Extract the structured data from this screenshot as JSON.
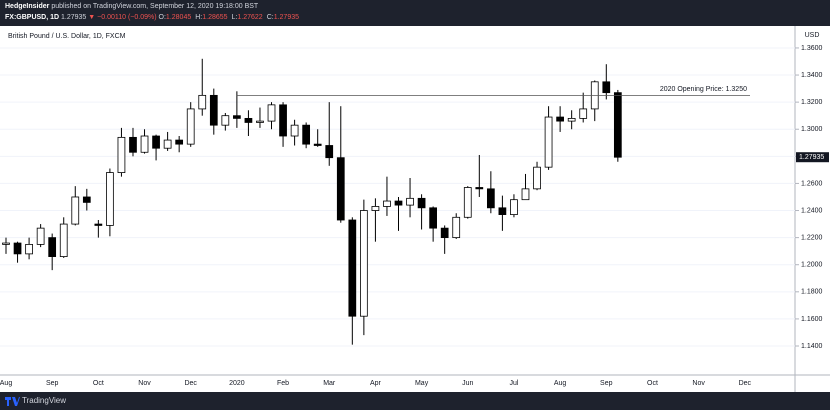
{
  "header": {
    "publisher": "HedgeInsider",
    "published": "published on TradingView.com, September 12, 2020 19:18:00 BST",
    "symbol": "FX:GBPUSD, 1D",
    "price": "1.27935",
    "change": "▼ −0.00110 (−0.09%)",
    "ohlc": [
      {
        "label": "O:",
        "value": "1.28045"
      },
      {
        "label": "H:",
        "value": "1.28655"
      },
      {
        "label": "L:",
        "value": "1.27622"
      },
      {
        "label": "C:",
        "value": "1.27935"
      }
    ]
  },
  "footer": {
    "brand": "TradingView"
  },
  "chart_data": {
    "type": "candlestick",
    "title": "British Pound / U.S. Dollar, 1D, FXCM",
    "currency": "USD",
    "up_color": "#ffffff",
    "down_color": "#000000",
    "outline_color": "#000000",
    "grid": true,
    "categories": [
      "Aug",
      null,
      null,
      null,
      "Sep",
      null,
      null,
      null,
      "Oct",
      null,
      null,
      null,
      "Nov",
      null,
      null,
      null,
      "Dec",
      null,
      null,
      null,
      "2020",
      null,
      null,
      null,
      "Feb",
      null,
      null,
      null,
      "Mar",
      null,
      null,
      null,
      "Apr",
      null,
      null,
      null,
      "May",
      null,
      null,
      null,
      "Jun",
      null,
      null,
      null,
      "Jul",
      null,
      null,
      null,
      "Aug",
      null,
      null,
      null,
      "Sep",
      null,
      null,
      null,
      "Oct",
      null,
      null,
      null,
      "Nov",
      null,
      null,
      null,
      "Dec",
      null,
      null,
      null
    ],
    "open": [
      1.215,
      1.216,
      1.208,
      1.215,
      1.22,
      1.206,
      1.23,
      1.25,
      1.23,
      1.229,
      1.268,
      1.294,
      1.283,
      1.295,
      1.286,
      1.292,
      1.289,
      1.315,
      1.325,
      1.303,
      1.31,
      1.308,
      1.305,
      1.306,
      1.318,
      1.295,
      1.303,
      1.289,
      1.288,
      1.279,
      1.233,
      1.162,
      1.24,
      1.243,
      1.247,
      1.244,
      1.249,
      1.242,
      1.227,
      1.22,
      1.235,
      1.257,
      1.256,
      1.242,
      1.237,
      1.248,
      1.256,
      1.272,
      1.309,
      1.306,
      1.308,
      1.315,
      1.335,
      1.327,
      null,
      null,
      null,
      null,
      null,
      null,
      null,
      null,
      null,
      null,
      null,
      null,
      null,
      null
    ],
    "high": [
      1.22,
      1.217,
      1.22,
      1.23,
      1.223,
      1.235,
      1.258,
      1.256,
      1.233,
      1.271,
      1.301,
      1.301,
      1.3,
      1.296,
      1.298,
      1.295,
      1.32,
      1.352,
      1.33,
      1.312,
      1.328,
      1.314,
      1.316,
      1.32,
      1.32,
      1.307,
      1.305,
      1.3,
      1.32,
      1.317,
      1.235,
      1.248,
      1.249,
      1.265,
      1.25,
      1.264,
      1.252,
      1.243,
      1.229,
      1.238,
      1.258,
      1.281,
      1.269,
      1.251,
      1.252,
      1.267,
      1.276,
      1.317,
      1.317,
      1.314,
      1.327,
      1.336,
      1.348,
      1.329,
      null,
      null,
      null,
      null,
      null,
      null,
      null,
      null,
      null,
      null,
      null,
      null,
      null,
      null
    ],
    "low": [
      1.208,
      1.2015,
      1.204,
      1.213,
      1.196,
      1.205,
      1.229,
      1.24,
      1.22,
      1.221,
      1.265,
      1.28,
      1.282,
      1.277,
      1.284,
      1.283,
      1.287,
      1.31,
      1.296,
      1.299,
      1.301,
      1.295,
      1.301,
      1.3,
      1.287,
      1.288,
      1.286,
      1.287,
      1.273,
      1.231,
      1.141,
      1.148,
      1.217,
      1.236,
      1.225,
      1.235,
      1.226,
      1.217,
      1.208,
      1.219,
      1.234,
      1.25,
      1.238,
      1.225,
      1.235,
      1.248,
      1.255,
      1.27,
      1.298,
      1.3,
      1.305,
      1.306,
      1.322,
      1.276,
      null,
      null,
      null,
      null,
      null,
      null,
      null,
      null,
      null,
      null,
      null,
      null,
      null,
      null
    ],
    "close": [
      1.216,
      1.208,
      1.215,
      1.227,
      1.206,
      1.23,
      1.25,
      1.246,
      1.229,
      1.268,
      1.294,
      1.283,
      1.295,
      1.286,
      1.292,
      1.289,
      1.315,
      1.325,
      1.303,
      1.31,
      1.308,
      1.305,
      1.306,
      1.318,
      1.295,
      1.303,
      1.289,
      1.288,
      1.279,
      1.233,
      1.162,
      1.24,
      1.243,
      1.247,
      1.244,
      1.249,
      1.242,
      1.227,
      1.22,
      1.235,
      1.257,
      1.256,
      1.242,
      1.237,
      1.248,
      1.256,
      1.272,
      1.309,
      1.306,
      1.308,
      1.315,
      1.335,
      1.327,
      1.27935,
      null,
      null,
      null,
      null,
      null,
      null,
      null,
      null,
      null,
      null,
      null,
      null,
      null,
      null
    ],
    "ylim": [
      1.1186,
      1.3762
    ],
    "yticks": [
      {
        "value": 1.14,
        "label": "1.1400"
      },
      {
        "value": 1.16,
        "label": "1.1600"
      },
      {
        "value": 1.18,
        "label": "1.1800"
      },
      {
        "value": 1.2,
        "label": "1.2000"
      },
      {
        "value": 1.22,
        "label": "1.2200"
      },
      {
        "value": 1.24,
        "label": "1.2400"
      },
      {
        "value": 1.26,
        "label": "1.2600"
      },
      {
        "value": 1.28,
        "label": "1.2800"
      },
      {
        "value": 1.3,
        "label": "1.3000"
      },
      {
        "value": 1.32,
        "label": "1.3200"
      },
      {
        "value": 1.34,
        "label": "1.3400"
      },
      {
        "value": 1.36,
        "label": "1.3600"
      }
    ],
    "annotations": [
      {
        "text": "2020 Opening Price: 1.3250",
        "value": 1.325
      }
    ]
  }
}
